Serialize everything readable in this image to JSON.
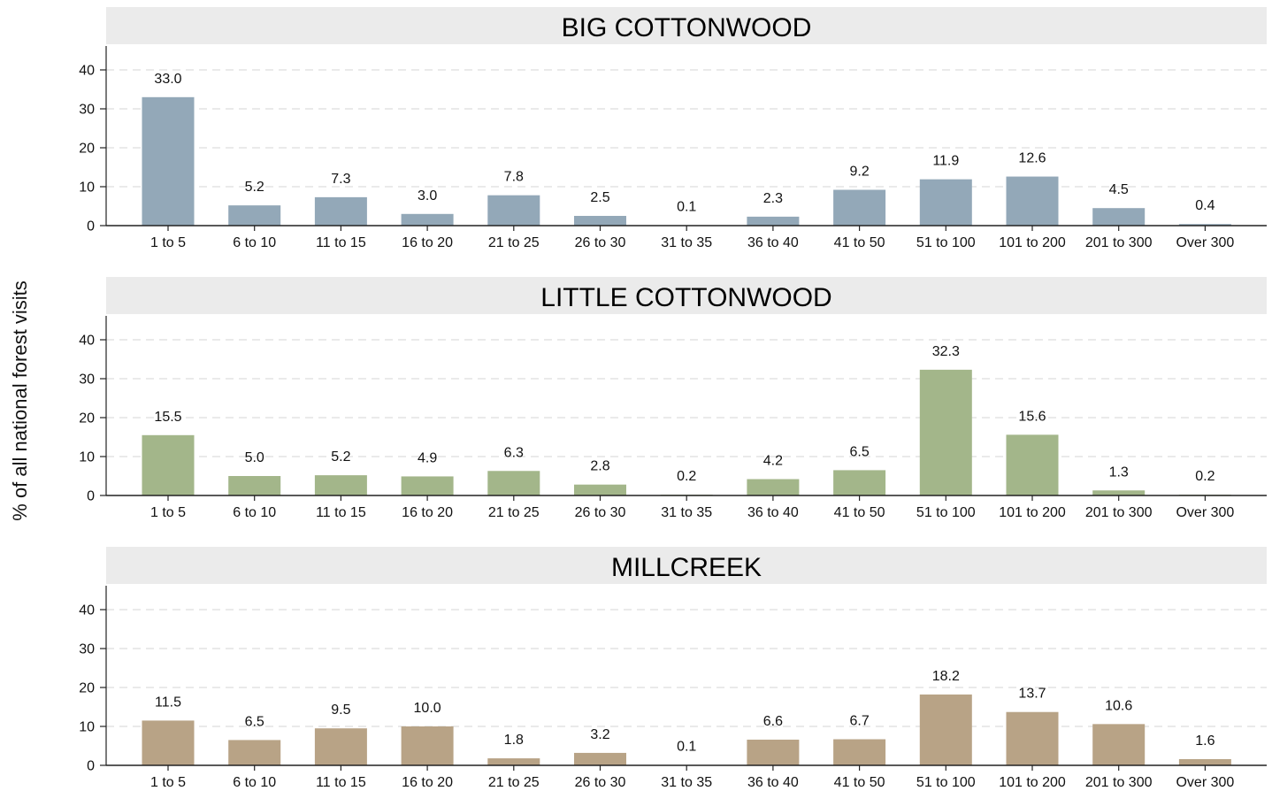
{
  "chart_data": {
    "type": "bar",
    "ylabel": "% of all national forest visits",
    "ylim": [
      0,
      40
    ],
    "yticks": [
      0,
      10,
      20,
      30,
      40
    ],
    "grid": true,
    "categories": [
      "1 to 5",
      "6 to 10",
      "11 to 15",
      "16 to 20",
      "21 to 25",
      "26 to 30",
      "31 to 35",
      "36 to 40",
      "41 to 50",
      "51 to 100",
      "101 to 200",
      "201 to 300",
      "Over 300"
    ],
    "panels": [
      {
        "title": "BIG COTTONWOOD",
        "color": "#93a8b8",
        "values": [
          33.0,
          5.2,
          7.3,
          3.0,
          7.8,
          2.5,
          0.1,
          2.3,
          9.2,
          11.9,
          12.6,
          4.5,
          0.4
        ],
        "labels": [
          "33.0",
          "5.2",
          "7.3",
          "3.0",
          "7.8",
          "2.5",
          "0.1",
          "2.3",
          "9.2",
          "11.9",
          "12.6",
          "4.5",
          "0.4"
        ]
      },
      {
        "title": "LITTLE COTTONWOOD",
        "color": "#a3b68a",
        "values": [
          15.5,
          5.0,
          5.2,
          4.9,
          6.3,
          2.8,
          0.2,
          4.2,
          6.5,
          32.3,
          15.6,
          1.3,
          0.2
        ],
        "labels": [
          "15.5",
          "5.0",
          "5.2",
          "4.9",
          "6.3",
          "2.8",
          "0.2",
          "4.2",
          "6.5",
          "32.3",
          "15.6",
          "1.3",
          "0.2"
        ]
      },
      {
        "title": "MILLCREEK",
        "color": "#b8a386",
        "values": [
          11.5,
          6.5,
          9.5,
          10.0,
          1.8,
          3.2,
          0.1,
          6.6,
          6.7,
          18.2,
          13.7,
          10.6,
          1.6
        ],
        "labels": [
          "11.5",
          "6.5",
          "9.5",
          "10.0",
          "1.8",
          "3.2",
          "0.1",
          "6.6",
          "6.7",
          "18.2",
          "13.7",
          "10.6",
          "1.6"
        ]
      }
    ]
  }
}
